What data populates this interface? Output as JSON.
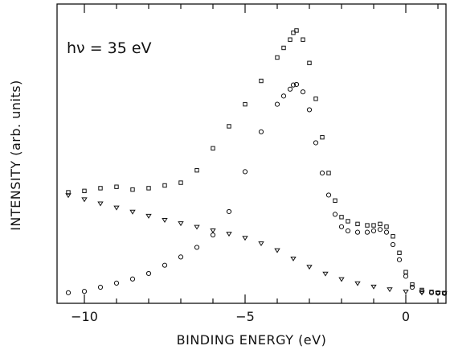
{
  "chart_data": {
    "type": "scatter",
    "title": "",
    "xlabel": "BINDING ENERGY (eV)",
    "ylabel": "INTENSITY (arb. units)",
    "annotation": "hν = 35 eV",
    "xlim": [
      -10.85,
      1.25
    ],
    "ylim": [
      0,
      100
    ],
    "x_ticks": [
      -10,
      -5,
      0
    ],
    "x_tick_labels": [
      "−10",
      "−5",
      "0"
    ],
    "x_minor_step": 1,
    "y_tick_labels": "none",
    "grid": false,
    "legend": "none",
    "series": [
      {
        "marker": "square",
        "x": [
          -10.5,
          -10.0,
          -9.5,
          -9.0,
          -8.5,
          -8.0,
          -7.5,
          -7.0,
          -6.5,
          -6.0,
          -5.5,
          -5.0,
          -4.5,
          -4.0,
          -3.8,
          -3.6,
          -3.5,
          -3.4,
          -3.2,
          -3.0,
          -2.8,
          -2.6,
          -2.4,
          -2.2,
          -2.0,
          -1.8,
          -1.5,
          -1.2,
          -1.0,
          -0.8,
          -0.6,
          -0.4,
          -0.2,
          0.0,
          0.2,
          0.5,
          0.8,
          1.0,
          1.2
        ],
        "y": [
          38.0,
          38.5,
          39.5,
          40.0,
          39.0,
          39.5,
          40.5,
          41.5,
          46.0,
          54.0,
          62.0,
          70.0,
          78.5,
          87.0,
          90.5,
          93.5,
          96.0,
          96.8,
          93.5,
          85.0,
          72.0,
          58.0,
          45.0,
          35.0,
          29.0,
          27.5,
          26.5,
          26.0,
          26.0,
          26.5,
          25.5,
          22.0,
          16.0,
          9.0,
          4.5,
          2.5,
          1.8,
          1.5,
          1.4
        ]
      },
      {
        "marker": "circle",
        "x": [
          -10.5,
          -10.0,
          -9.5,
          -9.0,
          -8.5,
          -8.0,
          -7.5,
          -7.0,
          -6.5,
          -6.0,
          -5.5,
          -5.0,
          -4.5,
          -4.0,
          -3.8,
          -3.6,
          -3.5,
          -3.4,
          -3.2,
          -3.0,
          -2.8,
          -2.6,
          -2.4,
          -2.2,
          -2.0,
          -1.8,
          -1.5,
          -1.2,
          -1.0,
          -0.8,
          -0.6,
          -0.4,
          -0.2,
          0.0,
          0.2,
          0.5,
          0.8,
          1.0,
          1.2
        ],
        "y": [
          1.5,
          2.0,
          3.5,
          5.0,
          6.5,
          8.5,
          11.5,
          14.5,
          18.0,
          22.5,
          31.0,
          45.5,
          60.0,
          70.0,
          73.0,
          75.5,
          77.0,
          77.2,
          74.5,
          68.0,
          56.0,
          45.0,
          37.0,
          30.0,
          25.5,
          24.0,
          23.5,
          23.5,
          24.0,
          24.5,
          23.5,
          19.0,
          13.5,
          7.5,
          3.5,
          2.0,
          1.5,
          1.4,
          1.3
        ]
      },
      {
        "marker": "triangle",
        "x": [
          -10.5,
          -10.0,
          -9.5,
          -9.0,
          -8.5,
          -8.0,
          -7.5,
          -7.0,
          -6.5,
          -6.0,
          -5.5,
          -5.0,
          -4.5,
          -4.0,
          -3.5,
          -3.0,
          -2.5,
          -2.0,
          -1.5,
          -1.0,
          -0.5,
          0.0,
          0.5,
          1.0,
          1.2
        ],
        "y": [
          37.0,
          35.5,
          34.0,
          32.5,
          31.0,
          29.5,
          28.0,
          26.8,
          25.5,
          24.2,
          23.0,
          21.5,
          19.5,
          17.0,
          14.0,
          11.0,
          8.5,
          6.5,
          5.0,
          3.8,
          2.8,
          2.0,
          1.6,
          1.4,
          1.3
        ]
      }
    ]
  }
}
